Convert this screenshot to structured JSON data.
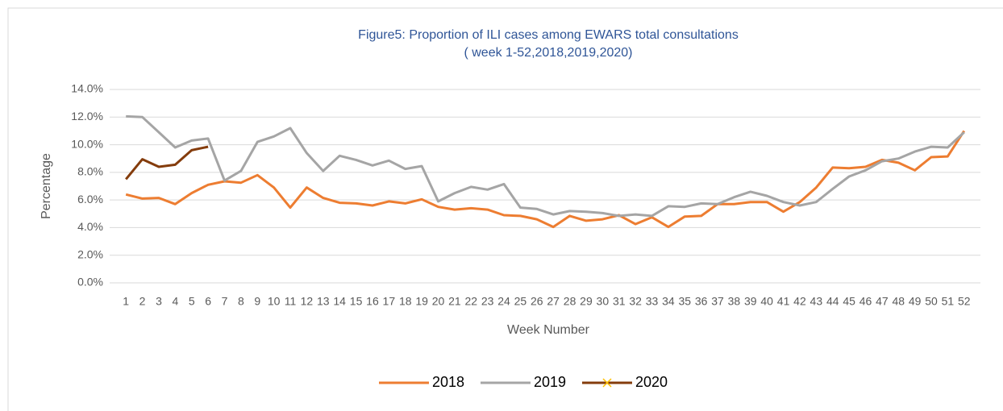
{
  "chart_data": {
    "type": "line",
    "title": "Figure5: Proportion of ILI cases among EWARS total consultations",
    "subtitle": "( week 1-52,2018,2019,2020)",
    "x_label": "Week Number",
    "y_label": "Percentage",
    "categories": [
      "1",
      "2",
      "3",
      "4",
      "5",
      "6",
      "7",
      "8",
      "9",
      "10",
      "11",
      "12",
      "13",
      "14",
      "15",
      "16",
      "17",
      "18",
      "19",
      "20",
      "21",
      "22",
      "23",
      "24",
      "25",
      "26",
      "27",
      "28",
      "29",
      "30",
      "31",
      "32",
      "33",
      "34",
      "35",
      "36",
      "37",
      "38",
      "39",
      "40",
      "41",
      "42",
      "43",
      "44",
      "45",
      "46",
      "47",
      "48",
      "49",
      "50",
      "51",
      "52"
    ],
    "series": [
      {
        "name": "2018",
        "color": "#ed7d31",
        "values": [
          6.4,
          6.1,
          6.15,
          5.7,
          6.5,
          7.1,
          7.35,
          7.25,
          7.8,
          6.9,
          5.45,
          6.9,
          6.15,
          5.8,
          5.75,
          5.6,
          5.9,
          5.75,
          6.05,
          5.5,
          5.3,
          5.4,
          5.3,
          4.9,
          4.85,
          4.6,
          4.05,
          4.85,
          4.5,
          4.6,
          4.9,
          4.25,
          4.75,
          4.05,
          4.8,
          4.85,
          5.7,
          5.7,
          5.85,
          5.85,
          5.15,
          5.85,
          6.9,
          8.35,
          8.3,
          8.4,
          8.9,
          8.7,
          8.15,
          9.1,
          9.15,
          11.0
        ]
      },
      {
        "name": "2019",
        "color": "#a5a5a5",
        "values": [
          12.05,
          12.0,
          10.9,
          9.8,
          10.3,
          10.45,
          7.4,
          8.1,
          10.2,
          10.6,
          11.2,
          9.4,
          8.1,
          9.2,
          8.9,
          8.5,
          8.85,
          8.25,
          8.45,
          5.9,
          6.5,
          6.95,
          6.75,
          7.15,
          5.45,
          5.35,
          4.95,
          5.2,
          5.15,
          5.05,
          4.85,
          4.95,
          4.85,
          5.55,
          5.5,
          5.75,
          5.7,
          6.2,
          6.6,
          6.3,
          5.85,
          5.6,
          5.85,
          6.8,
          7.7,
          8.15,
          8.8,
          9.0,
          9.5,
          9.85,
          9.8,
          10.9
        ]
      },
      {
        "name": "2020",
        "color": "#843c0c",
        "marker_color": "#ffc000",
        "values": [
          7.5,
          8.95,
          8.4,
          8.55,
          9.6,
          9.85,
          null,
          null,
          null,
          null,
          null,
          null,
          null,
          null,
          null,
          null,
          null,
          null,
          null,
          null,
          null,
          null,
          null,
          null,
          null,
          null,
          null,
          null,
          null,
          null,
          null,
          null,
          null,
          null,
          null,
          null,
          null,
          null,
          null,
          null,
          null,
          null,
          null,
          null,
          null,
          null,
          null,
          null,
          null,
          null,
          null,
          null
        ]
      }
    ],
    "ylim": [
      0,
      14
    ],
    "yticks": [
      {
        "value": 0,
        "label": "0.0%"
      },
      {
        "value": 2,
        "label": "2.0%"
      },
      {
        "value": 4,
        "label": "4.0%"
      },
      {
        "value": 6,
        "label": "6.0%"
      },
      {
        "value": 8,
        "label": "8.0%"
      },
      {
        "value": 10,
        "label": "10.0%"
      },
      {
        "value": 12,
        "label": "12.0%"
      },
      {
        "value": 14,
        "label": "14.0%"
      }
    ],
    "grid": true,
    "legend": "bottom"
  }
}
